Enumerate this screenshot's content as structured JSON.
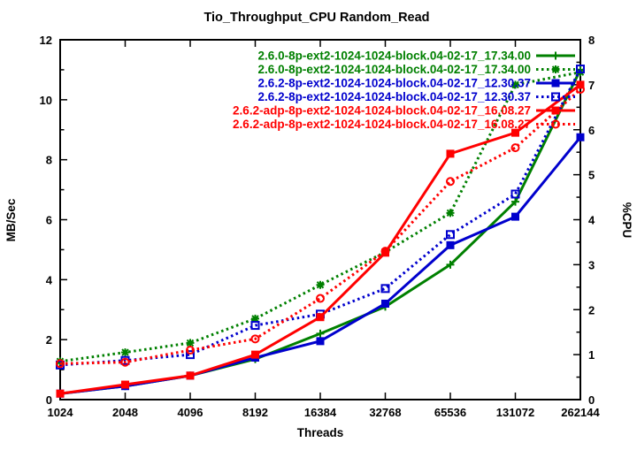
{
  "chart_data": {
    "type": "line",
    "title": "Tio_Throughput_CPU Random_Read",
    "xlabel": "Threads",
    "ylabel": "MB/Sec",
    "y2label": "%CPU",
    "categories": [
      "1024",
      "2048",
      "4096",
      "8192",
      "16384",
      "32768",
      "65536",
      "131072",
      "262144"
    ],
    "left_axis": {
      "label": "MB/Sec",
      "min": 0,
      "max": 12,
      "major_step": 2,
      "minor_step": 1
    },
    "right_axis": {
      "label": "%CPU",
      "min": 0,
      "max": 8,
      "major_step": 1,
      "minor_step": 0.5
    },
    "grid": false,
    "legend_position": "top-right-inside",
    "colors": {
      "green": "#008000",
      "blue": "#0000cd",
      "red": "#ff0000",
      "axis": "#000000",
      "background": "#ffffff"
    },
    "series": [
      {
        "name": "2.6.0-8p-ext2-1024-1024-block.04-02-17_17.34.00",
        "color": "green",
        "line": "solid",
        "marker": "plus",
        "axis": "left",
        "values": [
          0.2,
          0.45,
          0.8,
          1.35,
          2.2,
          3.1,
          4.5,
          6.6,
          11.0
        ]
      },
      {
        "name": "2.6.0-8p-ext2-1024-1024-block.04-02-17_17.34.00",
        "color": "green",
        "line": "dotted",
        "marker": "star",
        "axis": "right",
        "values": [
          0.85,
          1.05,
          1.26,
          1.8,
          2.55,
          3.28,
          4.15,
          7.0,
          7.28
        ]
      },
      {
        "name": "2.6.2-8p-ext2-1024-1024-block.04-02-17_12.30.37",
        "color": "blue",
        "line": "solid",
        "marker": "filled-square",
        "axis": "left",
        "values": [
          0.2,
          0.45,
          0.8,
          1.4,
          1.95,
          3.2,
          5.15,
          6.1,
          8.75
        ]
      },
      {
        "name": "2.6.2-8p-ext2-1024-1024-block.04-02-17_12.30.37",
        "color": "blue",
        "line": "dotted",
        "marker": "open-square",
        "axis": "right",
        "values": [
          0.77,
          0.87,
          1.0,
          1.65,
          1.9,
          2.47,
          3.67,
          4.57,
          7.35
        ]
      },
      {
        "name": "2.6.2-adp-8p-ext2-1024-1024-block.04-02-17_16.08.27",
        "color": "red",
        "line": "solid",
        "marker": "filled-square",
        "axis": "left",
        "values": [
          0.2,
          0.5,
          0.8,
          1.5,
          2.75,
          4.9,
          8.2,
          8.9,
          10.5
        ]
      },
      {
        "name": "2.6.2-adp-8p-ext2-1024-1024-block.04-02-17_16.08.27",
        "color": "red",
        "line": "dotted",
        "marker": "open-circle",
        "axis": "right",
        "values": [
          0.8,
          0.83,
          1.1,
          1.35,
          2.25,
          3.3,
          4.85,
          5.6,
          6.9
        ]
      }
    ]
  }
}
